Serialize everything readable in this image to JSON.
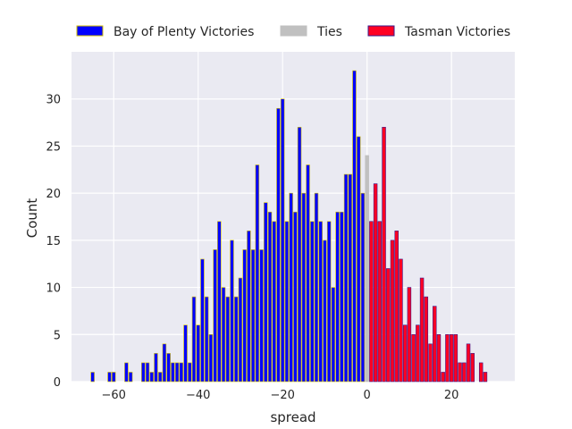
{
  "chart_data": {
    "type": "bar",
    "xlabel": "spread",
    "ylabel": "Count",
    "xlim": [
      -70,
      35
    ],
    "ylim": [
      0,
      35
    ],
    "xticks": [
      -60,
      -40,
      -20,
      0,
      20
    ],
    "yticks": [
      0,
      5,
      10,
      15,
      20,
      25,
      30
    ],
    "grid": true,
    "legend": "top",
    "colors": {
      "background": "#eaeaf2",
      "grid": "#ffffff",
      "bay": "#0000ff",
      "bay_edge": "#d4c100",
      "ties": "#c0c0c0",
      "tasman": "#ff0022",
      "tasman_edge": "#3a1a8a"
    },
    "legend_entries": [
      {
        "key": "bay",
        "label": "Bay of Plenty Victories"
      },
      {
        "key": "ties",
        "label": "Ties"
      },
      {
        "key": "tasman",
        "label": "Tasman Victories"
      }
    ],
    "series": [
      {
        "key": "bay",
        "name": "Bay of Plenty Victories",
        "x": [
          -65,
          -61,
          -60,
          -57,
          -56,
          -53,
          -52,
          -51,
          -50,
          -49,
          -48,
          -47,
          -46,
          -45,
          -44,
          -43,
          -42,
          -41,
          -40,
          -39,
          -38,
          -37,
          -36,
          -35,
          -34,
          -33,
          -32,
          -31,
          -30,
          -29,
          -28,
          -27,
          -26,
          -25,
          -24,
          -23,
          -22,
          -21,
          -20,
          -19,
          -18,
          -17,
          -16,
          -15,
          -14,
          -13,
          -12,
          -11,
          -10,
          -9,
          -8,
          -7,
          -6,
          -5,
          -4,
          -3,
          -2,
          -1
        ],
        "values": [
          1,
          1,
          1,
          2,
          1,
          2,
          2,
          1,
          3,
          1,
          4,
          3,
          2,
          2,
          2,
          6,
          2,
          9,
          6,
          13,
          9,
          5,
          14,
          17,
          10,
          9,
          15,
          9,
          11,
          14,
          16,
          14,
          23,
          14,
          19,
          18,
          17,
          29,
          30,
          17,
          20,
          18,
          27,
          20,
          23,
          17,
          20,
          17,
          15,
          17,
          10,
          18,
          18,
          22,
          22,
          33,
          26,
          20
        ]
      },
      {
        "key": "ties",
        "name": "Ties",
        "x": [
          0
        ],
        "values": [
          24
        ]
      },
      {
        "key": "tasman",
        "name": "Tasman Victories",
        "x": [
          1,
          2,
          3,
          4,
          5,
          6,
          7,
          8,
          9,
          10,
          11,
          12,
          13,
          14,
          15,
          16,
          17,
          18,
          19,
          20,
          21,
          22,
          23,
          24,
          25,
          26,
          27,
          28
        ],
        "values": [
          17,
          21,
          17,
          27,
          12,
          15,
          16,
          13,
          6,
          10,
          5,
          6,
          11,
          9,
          4,
          8,
          5,
          1,
          5,
          5,
          5,
          2,
          2,
          4,
          3,
          0,
          2,
          1
        ]
      }
    ]
  }
}
